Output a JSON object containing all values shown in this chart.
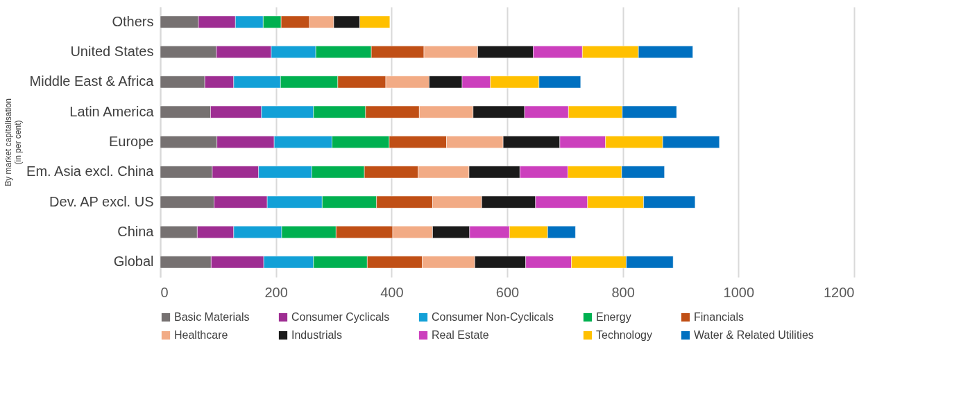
{
  "chart_data": {
    "type": "bar",
    "orientation": "horizontal",
    "stacked": true,
    "ylabel": "By market capitalisation\n(in per cent)",
    "categories": [
      "Others",
      "United States",
      "Middle East & Africa",
      "Latin America",
      "Europe",
      "Em. Asia excl. China",
      "Dev. AP excl. US",
      "China",
      "Global"
    ],
    "series": [
      {
        "name": "Basic Materials",
        "color": "#767171",
        "values": [
          66,
          97,
          77,
          87,
          98,
          90,
          93,
          64,
          88
        ]
      },
      {
        "name": "Consumer Cyclicals",
        "color": "#9e2d92",
        "values": [
          64,
          95,
          50,
          88,
          99,
          80,
          92,
          63,
          91
        ]
      },
      {
        "name": "Consumer Non-Cyclicals",
        "color": "#12a0d7",
        "values": [
          48,
          77,
          81,
          90,
          100,
          92,
          95,
          83,
          86
        ]
      },
      {
        "name": "Energy",
        "color": "#00b050",
        "values": [
          31,
          96,
          99,
          90,
          99,
          91,
          94,
          94,
          93
        ]
      },
      {
        "name": "Financials",
        "color": "#c04f15",
        "values": [
          49,
          91,
          83,
          93,
          99,
          93,
          97,
          98,
          95
        ]
      },
      {
        "name": "Healthcare",
        "color": "#f2ab85",
        "values": [
          42,
          93,
          75,
          93,
          98,
          88,
          85,
          69,
          91
        ]
      },
      {
        "name": "Industrials",
        "color": "#1a1a1a",
        "values": [
          45,
          96,
          57,
          89,
          98,
          88,
          93,
          64,
          88
        ]
      },
      {
        "name": "Real Estate",
        "color": "#cc3fbd",
        "values": [
          null,
          85,
          49,
          76,
          79,
          83,
          90,
          69,
          79
        ]
      },
      {
        "name": "Technology",
        "color": "#ffc000",
        "values": [
          52,
          97,
          84,
          93,
          99,
          93,
          97,
          66,
          95
        ]
      },
      {
        "name": "Water & Related Utilities",
        "color": "#0070c0",
        "values": [
          null,
          94,
          72,
          94,
          98,
          74,
          89,
          48,
          81
        ]
      }
    ],
    "xlim": [
      0,
      1200
    ],
    "xticks": [
      0,
      200,
      400,
      600,
      800,
      1000,
      1200
    ],
    "grid": "x",
    "legend": "bottom"
  }
}
